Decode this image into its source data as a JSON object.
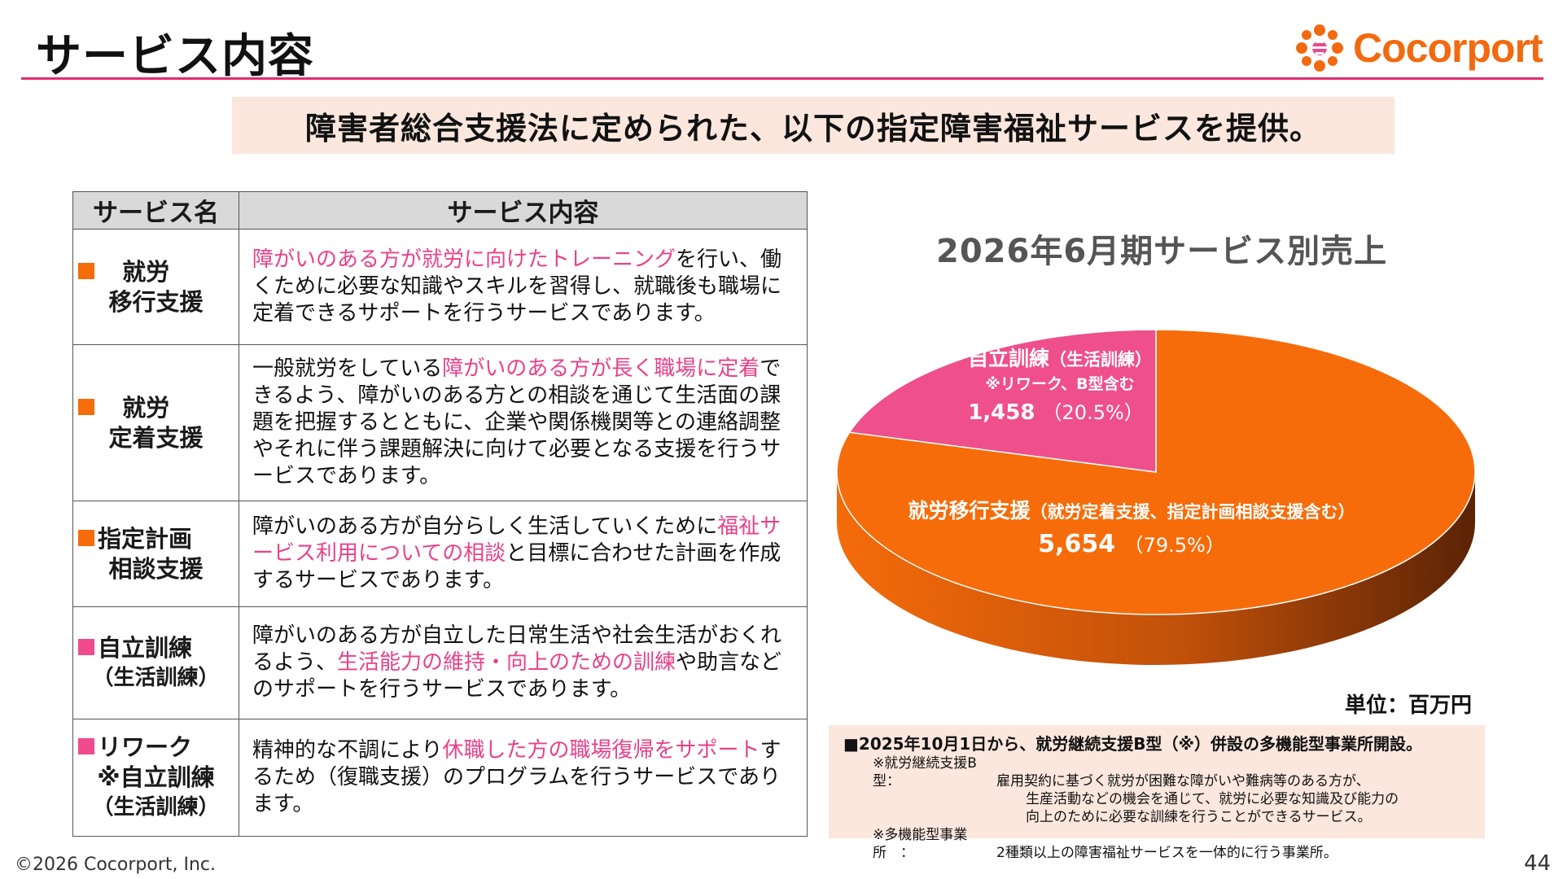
{
  "header": {
    "title": "サービス内容",
    "logo_text": "Cocorport",
    "brand_color": "#f26a10",
    "accent_color": "#e02d6e"
  },
  "banner": {
    "text": "障害者総合支援法に定められた、以下の指定障害福祉サービスを提供。"
  },
  "table": {
    "headers": [
      "サービス名",
      "サービス内容"
    ],
    "rows": [
      {
        "marker_color": "#f76c0a",
        "name_line1": "就労",
        "name_line2": "移行支援",
        "name_line3": "",
        "desc_parts": [
          {
            "text": "障がいのある方が就労に向けたトレーニング",
            "highlight": true
          },
          {
            "text": "を行い、働くために必要な知識やスキルを習得し、就職後も職場に定着できるサポートを行うサービスであります。",
            "highlight": false
          }
        ]
      },
      {
        "marker_color": "#f76c0a",
        "name_line1": "就労",
        "name_line2": "定着支援",
        "name_line3": "",
        "desc_parts": [
          {
            "text": "一般就労をしている",
            "highlight": false
          },
          {
            "text": "障がいのある方が長く職場に定着",
            "highlight": true
          },
          {
            "text": "できるよう、障がいのある方との相談を通じて生活面の課題を把握するとともに、企業や関係機関等との連絡調整やそれに伴う課題解決に向けて必要となる支援を行うサービスであります。",
            "highlight": false
          }
        ]
      },
      {
        "marker_color": "#f76c0a",
        "name_line1": "指定計画",
        "name_line2": "相談支援",
        "name_line3": "",
        "desc_parts": [
          {
            "text": "障がいのある方が自分らしく生活していくために",
            "highlight": false
          },
          {
            "text": "福祉サービス利用についての相談",
            "highlight": true
          },
          {
            "text": "と目標に合わせた計画を作成するサービスであります。",
            "highlight": false
          }
        ]
      },
      {
        "marker_color": "#f04b8e",
        "name_line1": "自立訓練",
        "name_line2": "（生活訓練）",
        "name_line3": "",
        "desc_parts": [
          {
            "text": "障がいのある方が自立した日常生活や社会生活がおくれるよう、",
            "highlight": false
          },
          {
            "text": "生活能力の維持・向上のための訓練",
            "highlight": true
          },
          {
            "text": "や助言などのサポートを行うサービスであります。",
            "highlight": false
          }
        ]
      },
      {
        "marker_color": "#f04b8e",
        "name_line1": "リワーク",
        "name_line2": "※自立訓練",
        "name_line3": "（生活訓練）",
        "desc_parts": [
          {
            "text": "精神的な不調により",
            "highlight": false
          },
          {
            "text": "休職した方の職場復帰をサポート",
            "highlight": true
          },
          {
            "text": "するため（復職支援）のプログラムを行うサービスであります。",
            "highlight": false
          }
        ]
      }
    ]
  },
  "chart_data": {
    "type": "pie",
    "title": "2026年6月期サービス別売上",
    "unit": "単位：百万円",
    "slices": [
      {
        "name": "就労移行支援",
        "sub": "（就労定着支援、指定計画相談支援含む）",
        "value": 5654,
        "value_label": "5,654",
        "pct_label": "（79.5%）",
        "color": "#f76c0a"
      },
      {
        "name": "自立訓練",
        "sub": "（生活訓練）",
        "note": "※リワーク、B型含む",
        "value": 1458,
        "value_label": "1,458",
        "pct_label": "（20.5%）",
        "color": "#ef4f8a"
      }
    ]
  },
  "notes": {
    "head": "■2025年10月1日から、就労継続支援B型（※）併設の多機能型事業所開設。",
    "def1_label": "※就労継続支援B型：",
    "def1_text1": "雇用契約に基づく就労が困難な障がいや難病等のある方が、",
    "def1_text2": "生産活動などの機会を通じて、就労に必要な知識及び能力の",
    "def1_text3": "向上のために必要な訓練を行うことができるサービス。",
    "def2_label": "※多機能型事業所　：",
    "def2_text": "2種類以上の障害福祉サービスを一体的に行う事業所。"
  },
  "footer": {
    "copyright": "©2026 Cocorport, Inc.",
    "page": "44"
  }
}
